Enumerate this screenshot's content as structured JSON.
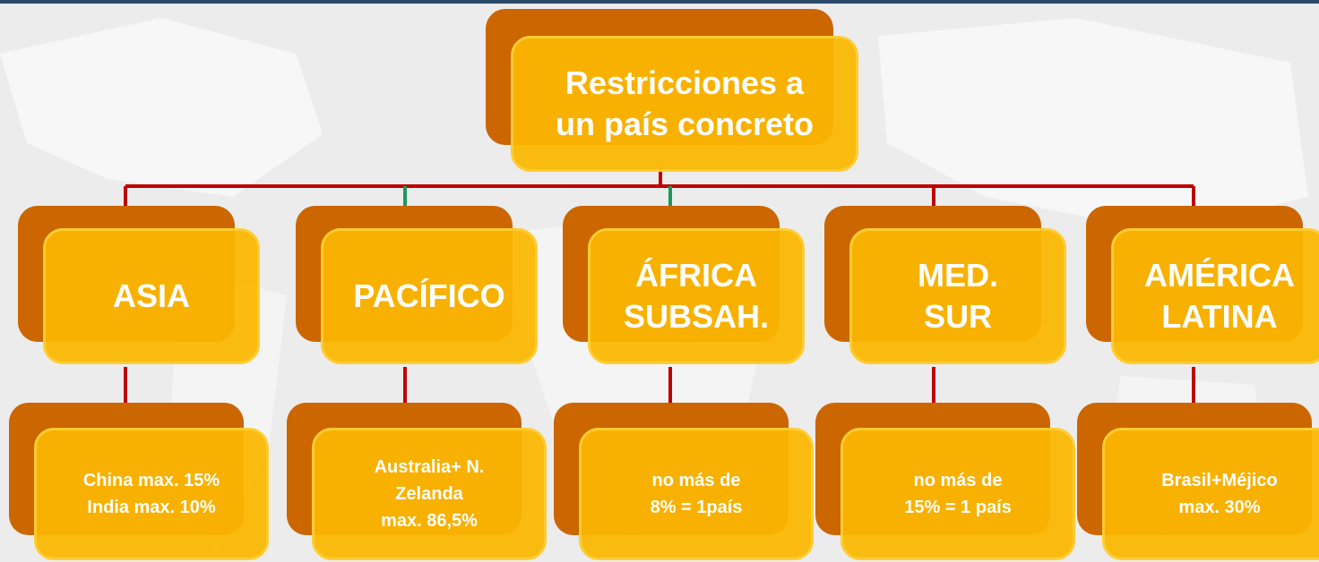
{
  "root": {
    "lines": [
      "Restricciones a",
      "un país concreto"
    ]
  },
  "nodes": [
    {
      "lines": [
        "ASIA"
      ],
      "details": [
        "China max. 15%",
        "India max. 10%"
      ]
    },
    {
      "lines": [
        "PACÍFICO"
      ],
      "details": [
        "Australia+ N.",
        "Zelanda",
        "max. 86,5%"
      ]
    },
    {
      "lines": [
        "ÁFRICA",
        "SUBSAH."
      ],
      "details": [
        "no más de",
        "8% = 1país"
      ]
    },
    {
      "lines": [
        "MED.",
        "SUR"
      ],
      "details": [
        "no más de",
        "15% = 1 país"
      ]
    },
    {
      "lines": [
        "AMÉRICA",
        "LATINA"
      ],
      "details": [
        "Brasil+Méjico",
        "max. 30%"
      ]
    }
  ]
}
